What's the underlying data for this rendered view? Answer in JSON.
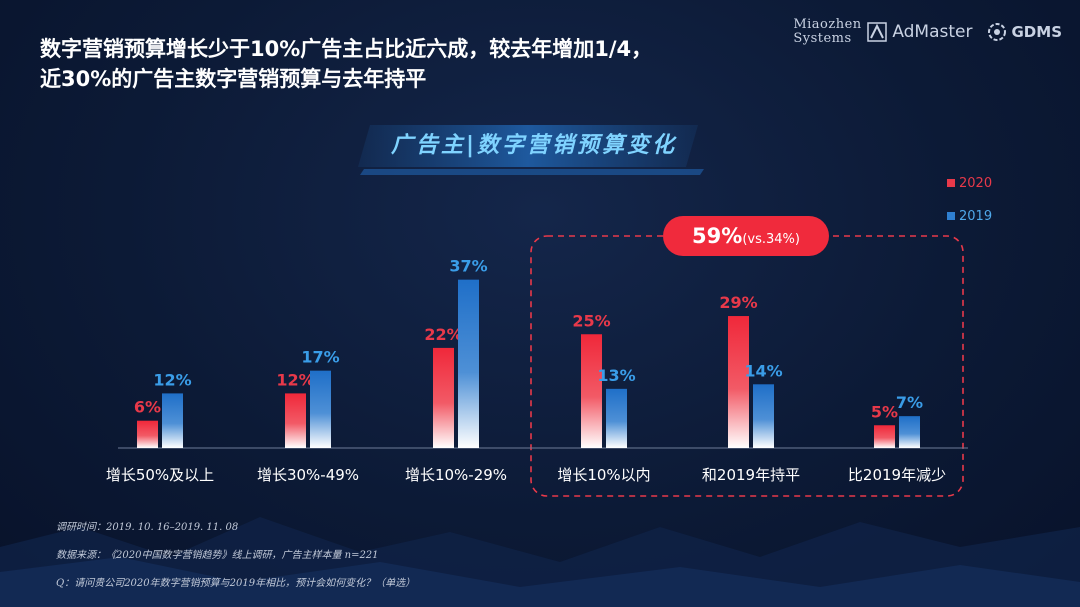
{
  "headline": {
    "line1": "数字营销预算增长少于10%广告主占比近六成，较去年增加1/4，",
    "line2": "近30%的广告主数字营销预算与去年持平"
  },
  "logos": {
    "miaozhen_line1": "Miaozhen",
    "miaozhen_line2": "Systems",
    "admaster": "AdMaster",
    "gdms": "GDMS"
  },
  "banner_title": "广告主|数字营销预算变化",
  "colors": {
    "red": "#e8394a",
    "blue": "#2f7fd0",
    "highlight": "#f02a3c"
  },
  "callout": {
    "value": "59%",
    "compare": "(vs.34%)"
  },
  "chart_data": {
    "type": "bar",
    "categories": [
      "增长50%及以上",
      "增长30%-49%",
      "增长10%-29%",
      "增长10%以内",
      "和2019年持平",
      "比2019年减少"
    ],
    "series": [
      {
        "name": "2020",
        "values": [
          6,
          12,
          22,
          25,
          29,
          5
        ],
        "labels": [
          "6%",
          "12%",
          "22%",
          "25%",
          "29%",
          "5%"
        ]
      },
      {
        "name": "2019",
        "values": [
          12,
          17,
          37,
          13,
          14,
          7
        ],
        "labels": [
          "12%",
          "17%",
          "37%",
          "13%",
          "14%",
          "7%"
        ]
      }
    ],
    "ylim": [
      0,
      40
    ],
    "legend_position": "top-right",
    "grid": false,
    "highlight_categories": [
      "增长10%以内",
      "和2019年持平",
      "比2019年减少"
    ]
  },
  "notes": {
    "time": "调研时间：2019. 10. 16–2019. 11. 08",
    "source": "数据来源：《2020中国数字营销趋势》线上调研，广告主样本量  n=221",
    "question": "Q：请问贵公司2020年数字营销预算与2019年相比，预计会如何变化？（单选）"
  }
}
